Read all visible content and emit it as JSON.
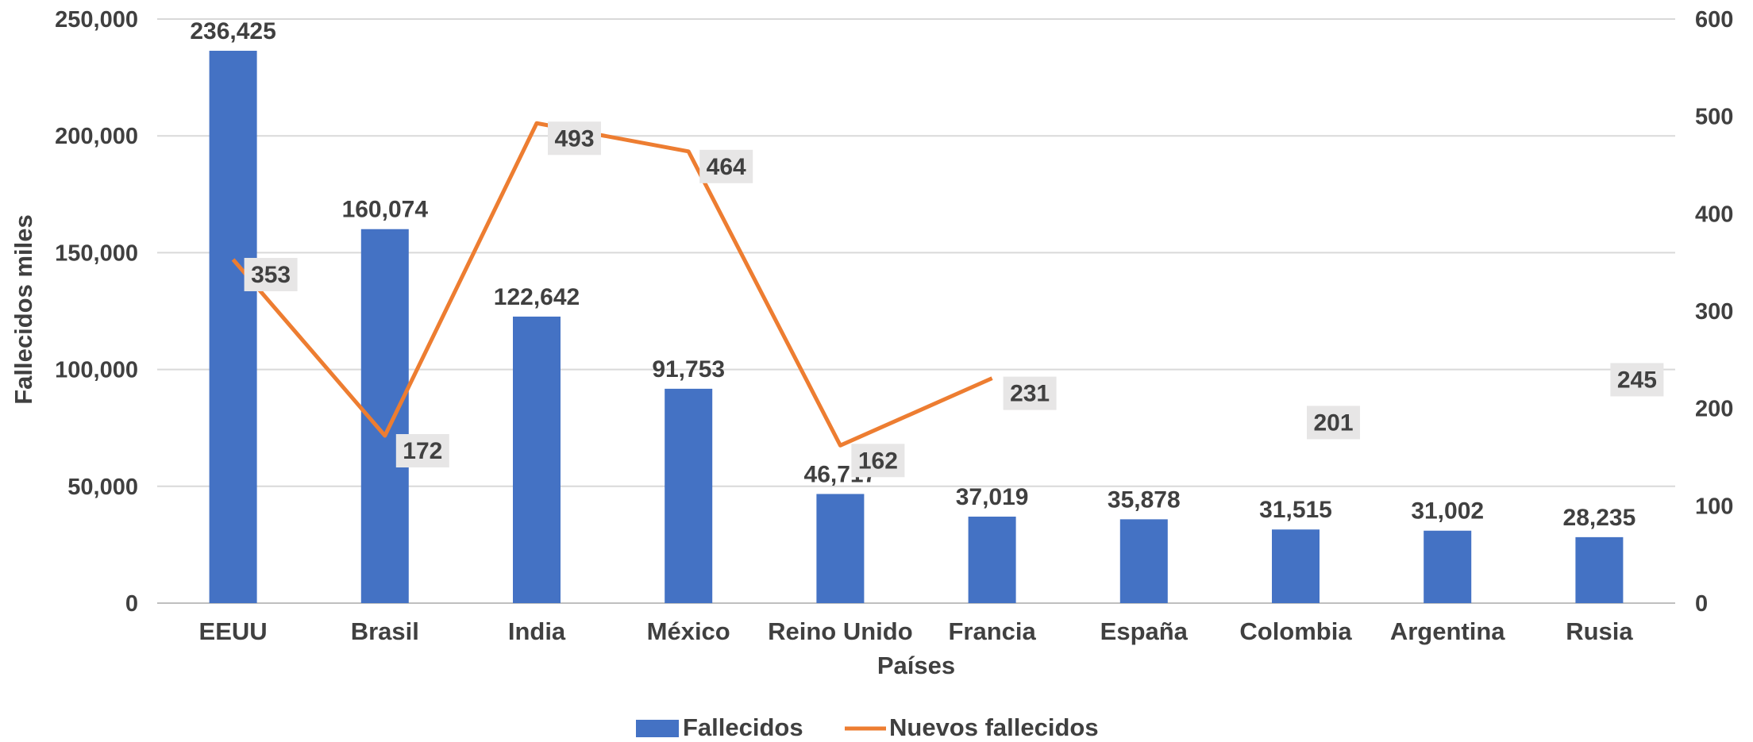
{
  "chart_data": {
    "type": "bar",
    "categories": [
      "EEUU",
      "Brasil",
      "India",
      "México",
      "Reino Unido",
      "Francia",
      "España",
      "Colombia",
      "Argentina",
      "Rusia"
    ],
    "series": [
      {
        "name": "Fallecidos",
        "type": "bar",
        "axis": "left",
        "color": "#4472C4",
        "values": [
          236425,
          160074,
          122642,
          91753,
          46717,
          37019,
          35878,
          31515,
          31002,
          28235
        ],
        "labels": [
          "236,425",
          "160,074",
          "122,642",
          "91,753",
          "46,717",
          "37,019",
          "35,878",
          "31,515",
          "31,002",
          "28,235"
        ]
      },
      {
        "name": "Nuevos fallecidos",
        "type": "line",
        "axis": "right",
        "color": "#ED7D31",
        "values": [
          353,
          172,
          493,
          464,
          162,
          231,
          null,
          201,
          null,
          245
        ],
        "labels": [
          "353",
          "172",
          "493",
          "464",
          "162",
          "231",
          "",
          "201",
          "",
          "245"
        ]
      }
    ],
    "xlabel": "Países",
    "ylabel": "Fallecidos miles",
    "y_left": {
      "range": [
        0,
        250000
      ],
      "ticks": [
        0,
        50000,
        100000,
        150000,
        200000,
        250000
      ],
      "tick_labels": [
        "0",
        "50,000",
        "100,000",
        "150,000",
        "200,000",
        "250,000"
      ]
    },
    "y_right": {
      "range": [
        0,
        600
      ],
      "ticks": [
        0,
        100,
        200,
        300,
        400,
        500,
        600
      ],
      "tick_labels": [
        "0",
        "100",
        "200",
        "300",
        "400",
        "500",
        "600"
      ]
    },
    "grid": true,
    "legend": "bottom",
    "line_label_background": "#E7E6E6",
    "gridline_color": "#D9D9D9"
  }
}
